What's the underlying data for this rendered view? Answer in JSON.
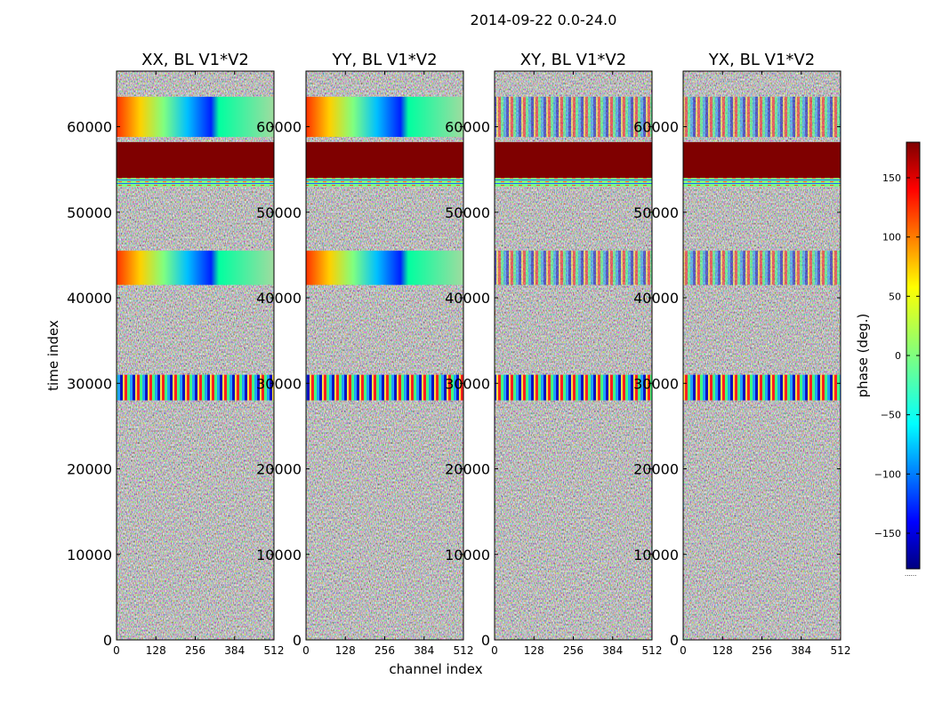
{
  "figure": {
    "suptitle": "2014-09-22 0.0-24.0",
    "xlabel": "channel index",
    "ylabel": "time index",
    "colorbar_label": "phase (deg.)",
    "colorbar_offset_text": "......"
  },
  "chart_data": {
    "type": "heatmap",
    "description_units": "phase in degrees",
    "panels": [
      {
        "title": "XX, BL V1*V2",
        "polarization": "XX"
      },
      {
        "title": "YY, BL V1*V2",
        "polarization": "YY"
      },
      {
        "title": "XY, BL V1*V2",
        "polarization": "XY"
      },
      {
        "title": "YX, BL V1*V2",
        "polarization": "YX"
      }
    ],
    "x": {
      "label": "channel index",
      "range": [
        0,
        512
      ],
      "ticks": [
        0,
        128,
        256,
        384,
        512
      ],
      "tick_labels": [
        "0",
        "128",
        "256",
        "384",
        "512"
      ]
    },
    "y": {
      "label": "time index",
      "range": [
        0,
        66500
      ],
      "ticks": [
        0,
        10000,
        20000,
        30000,
        40000,
        50000,
        60000
      ],
      "tick_labels": [
        "0",
        "10000",
        "20000",
        "30000",
        "40000",
        "50000",
        "60000"
      ]
    },
    "colorbar": {
      "label": "phase (deg.)",
      "range": [
        -180,
        180
      ],
      "ticks": [
        -150,
        -100,
        -50,
        0,
        50,
        100,
        150
      ],
      "tick_labels": [
        "−150",
        "−100",
        "−50",
        "0",
        "50",
        "100",
        "150"
      ],
      "colormap": "jet"
    },
    "features": [
      {
        "name": "saturated band",
        "time_range": [
          54000,
          58200
        ],
        "phase": 180
      },
      {
        "name": "flagged stripe",
        "time_range": [
          53000,
          54000
        ],
        "phase": 0
      },
      {
        "name": "fringe band",
        "time_range": [
          28000,
          31000
        ]
      },
      {
        "name": "gradient band",
        "time_range": [
          41500,
          45500
        ]
      },
      {
        "name": "gradient band",
        "time_range": [
          58800,
          63500
        ]
      }
    ]
  }
}
